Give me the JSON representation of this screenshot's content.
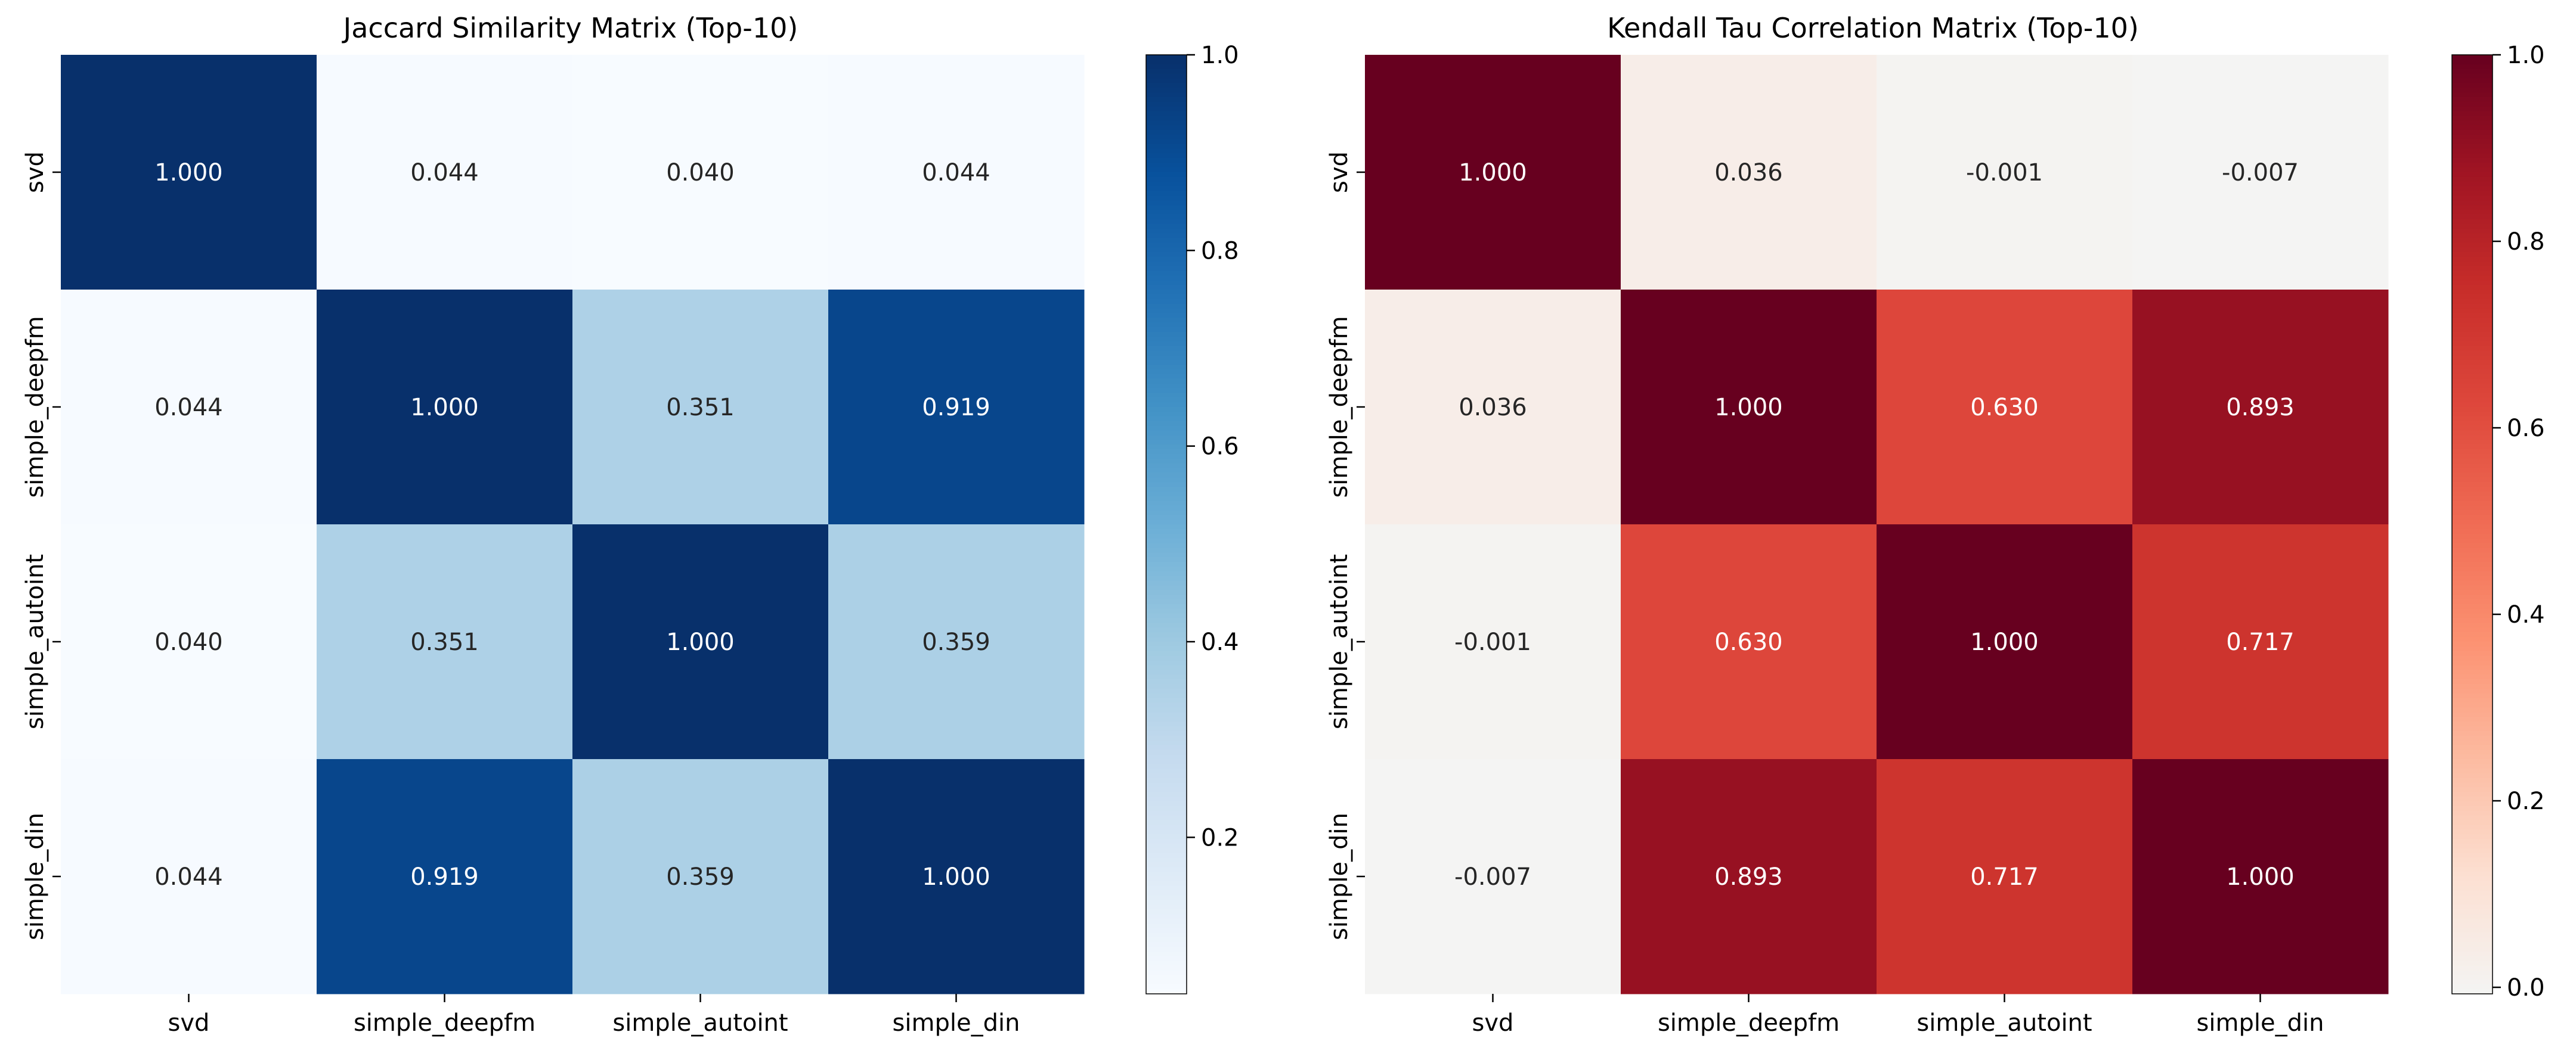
{
  "chart_data": [
    {
      "type": "heatmap",
      "title": "Jaccard Similarity Matrix (Top-10)",
      "row_labels": [
        "svd",
        "simple_deepfm",
        "simple_autoint",
        "simple_din"
      ],
      "col_labels": [
        "svd",
        "simple_deepfm",
        "simple_autoint",
        "simple_din"
      ],
      "values": [
        [
          1.0,
          0.044,
          0.04,
          0.044
        ],
        [
          0.044,
          1.0,
          0.351,
          0.919
        ],
        [
          0.04,
          0.351,
          1.0,
          0.359
        ],
        [
          0.044,
          0.919,
          0.359,
          1.0
        ]
      ],
      "colormap": "Blues",
      "vmin": 0.04,
      "vmax": 1.0,
      "colorbar_ticks": [
        "0.2",
        "0.4",
        "0.6",
        "0.8",
        "1.0"
      ],
      "cell_label_format": "3 decimals"
    },
    {
      "type": "heatmap",
      "title": "Kendall Tau Correlation Matrix (Top-10)",
      "row_labels": [
        "svd",
        "simple_deepfm",
        "simple_autoint",
        "simple_din"
      ],
      "col_labels": [
        "svd",
        "simple_deepfm",
        "simple_autoint",
        "simple_din"
      ],
      "values": [
        [
          1.0,
          0.036,
          -0.001,
          -0.007
        ],
        [
          0.036,
          1.0,
          0.63,
          0.893
        ],
        [
          -0.001,
          0.63,
          1.0,
          0.717
        ],
        [
          -0.007,
          0.893,
          0.717,
          1.0
        ]
      ],
      "colormap": "Reds",
      "vmin": -0.007,
      "vmax": 1.0,
      "colorbar_ticks": [
        "0.0",
        "0.2",
        "0.4",
        "0.6",
        "0.8",
        "1.0"
      ],
      "cell_label_format": "3 decimals"
    }
  ]
}
